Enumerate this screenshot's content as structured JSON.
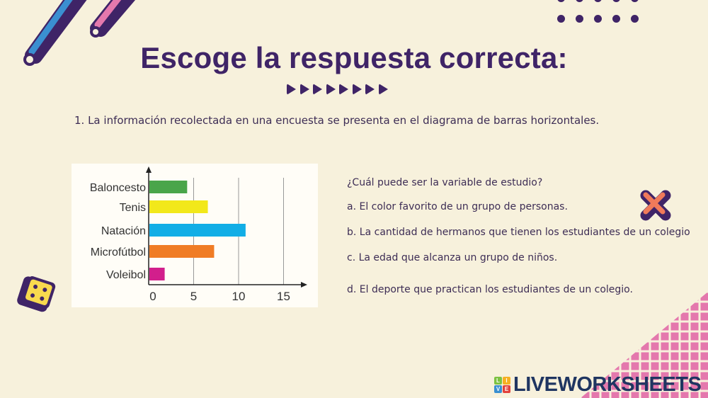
{
  "header": {
    "title": "Escoge la respuesta correcta:",
    "arrow_count": 8
  },
  "question_intro": "1. La información recolectada en una encuesta se presenta en el diagrama de barras horizontales.",
  "question": "¿Cuál puede ser la variable de estudio?",
  "options": [
    {
      "label": "a. El color favorito de un grupo de personas."
    },
    {
      "label": "b. La cantidad de hermanos que tienen los estudiantes de un colegio"
    },
    {
      "label": "c. La edad que alcanza un grupo de niños."
    },
    {
      "label": "d. El deporte que practican los estudiantes de un colegio."
    }
  ],
  "feedback_icon": "incorrect-x-icon",
  "brand": {
    "logo_text": "LIVEWORKSHEETS",
    "tiles": [
      "L",
      "I",
      "V",
      "E"
    ]
  },
  "colors": {
    "background": "#f7f1dc",
    "title": "#3f2467",
    "accent_pink": "#e478ad",
    "accent_blue": "#3a8fd1",
    "x_mark": "#f07a5a",
    "dice_yellow": "#f8d94e"
  },
  "chart_data": {
    "type": "bar",
    "orientation": "horizontal",
    "categories": [
      "Baloncesto",
      "Tenis",
      "Natación",
      "Microfútbol",
      "Voleibol"
    ],
    "values": [
      4.2,
      6.5,
      10.7,
      7.2,
      1.7
    ],
    "bar_colors": [
      "#4aa54a",
      "#f2e81a",
      "#12aee6",
      "#f07c25",
      "#d21f8c"
    ],
    "title": "",
    "xlabel": "",
    "ylabel": "",
    "xticks": [
      "0",
      "5",
      "10",
      "15"
    ],
    "xlim": [
      0,
      17
    ],
    "grid": true,
    "legend": "none"
  }
}
